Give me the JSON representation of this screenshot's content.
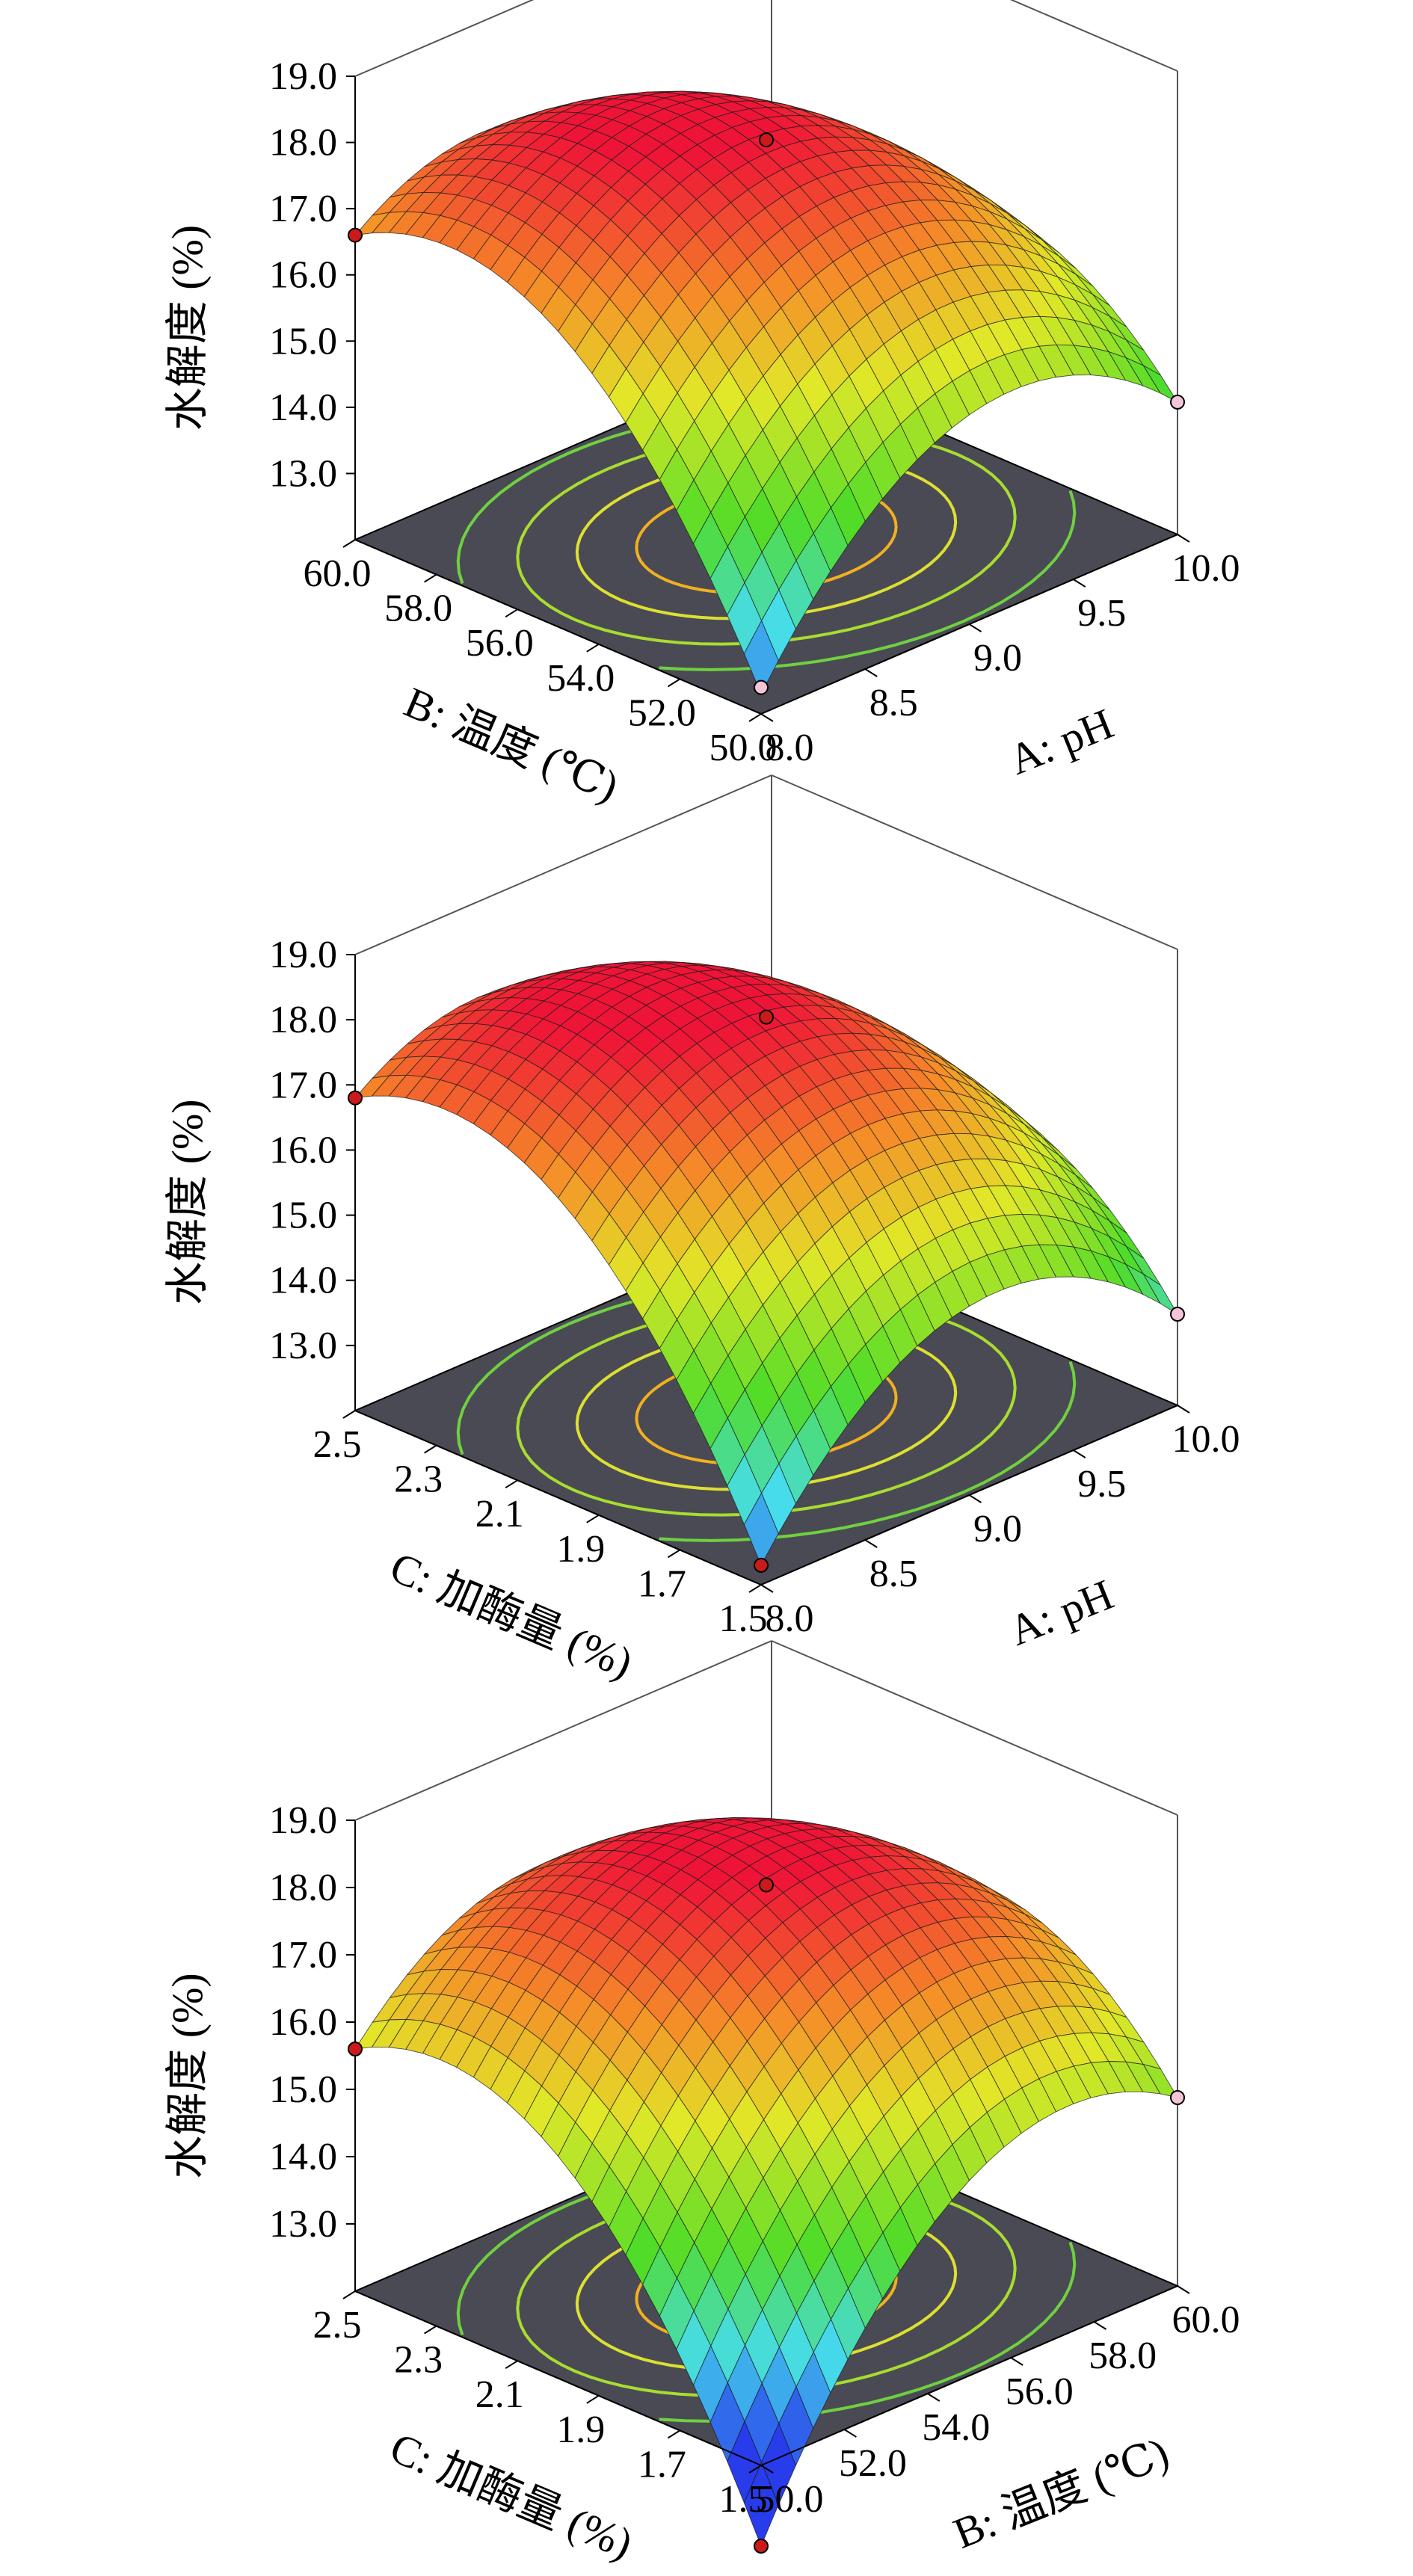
{
  "chart_data": [
    {
      "type": "surface3d",
      "zlabel": "水解度 (%)",
      "xlabel": "A: pH",
      "ylabel": "B: 温度 (℃)",
      "x_ticks": [
        "8.0",
        "8.5",
        "9.0",
        "9.5",
        "10.0"
      ],
      "y_ticks": [
        "50.0",
        "52.0",
        "54.0",
        "56.0",
        "58.0",
        "60.0"
      ],
      "z_ticks": [
        "13.0",
        "14.0",
        "15.0",
        "16.0",
        "17.0",
        "18.0",
        "19.0"
      ],
      "xlim": [
        8.0,
        10.0
      ],
      "ylim": [
        50.0,
        60.0
      ],
      "zlim": [
        12.0,
        19.0
      ],
      "corner_values": {
        "low_low": 12.3,
        "low_high": 16.6,
        "high_low": 14.0,
        "high_high": 13.4
      },
      "peak": {
        "x": 9.0,
        "y": 55.0,
        "z": 18.1
      },
      "design_points": [
        {
          "x": 9.0,
          "y": 55.0,
          "z": 18.0
        },
        {
          "x": 8.0,
          "y": 60.0,
          "z": 16.6
        },
        {
          "x": 10.0,
          "y": 50.0,
          "z": 14.0
        },
        {
          "x": 8.0,
          "y": 50.0,
          "z": 12.4
        }
      ]
    },
    {
      "type": "surface3d",
      "zlabel": "水解度 (%)",
      "xlabel": "A: pH",
      "ylabel": "C: 加酶量 (%)",
      "x_ticks": [
        "8.0",
        "8.5",
        "9.0",
        "9.5",
        "10.0"
      ],
      "y_ticks": [
        "1.5",
        "1.7",
        "1.9",
        "2.1",
        "2.3",
        "2.5"
      ],
      "z_ticks": [
        "13.0",
        "14.0",
        "15.0",
        "16.0",
        "17.0",
        "18.0",
        "19.0"
      ],
      "xlim": [
        8.0,
        10.0
      ],
      "ylim": [
        1.5,
        2.5
      ],
      "zlim": [
        12.0,
        19.0
      ],
      "corner_values": {
        "low_low": 12.3,
        "low_high": 16.8,
        "high_low": 13.4,
        "high_high": 13.5
      },
      "peak": {
        "x": 9.0,
        "y": 2.0,
        "z": 18.1
      },
      "design_points": [
        {
          "x": 9.0,
          "y": 2.0,
          "z": 18.0
        },
        {
          "x": 8.0,
          "y": 2.5,
          "z": 16.8
        },
        {
          "x": 10.0,
          "y": 1.5,
          "z": 13.4
        },
        {
          "x": 8.0,
          "y": 1.5,
          "z": 12.3
        }
      ]
    },
    {
      "type": "surface3d",
      "zlabel": "水解度 (%)",
      "xlabel": "B: 温度 (℃)",
      "ylabel": "C: 加酶量 (%)",
      "x_ticks": [
        "50.0",
        "52.0",
        "54.0",
        "56.0",
        "58.0",
        "60.0"
      ],
      "y_ticks": [
        "1.5",
        "1.7",
        "1.9",
        "2.1",
        "2.3",
        "2.5"
      ],
      "z_ticks": [
        "13.0",
        "14.0",
        "15.0",
        "16.0",
        "17.0",
        "18.0",
        "19.0"
      ],
      "xlim": [
        50.0,
        60.0
      ],
      "ylim": [
        1.5,
        2.5
      ],
      "zlim": [
        12.0,
        19.0
      ],
      "corner_values": {
        "low_low": 10.8,
        "low_high": 15.6,
        "high_low": 14.8,
        "high_high": 14.4
      },
      "peak": {
        "x": 55.0,
        "y": 2.0,
        "z": 18.1
      },
      "design_points": [
        {
          "x": 55.0,
          "y": 2.0,
          "z": 18.0
        },
        {
          "x": 50.0,
          "y": 2.5,
          "z": 15.6
        },
        {
          "x": 60.0,
          "y": 1.5,
          "z": 14.8
        },
        {
          "x": 50.0,
          "y": 1.5,
          "z": 10.8
        }
      ]
    }
  ]
}
